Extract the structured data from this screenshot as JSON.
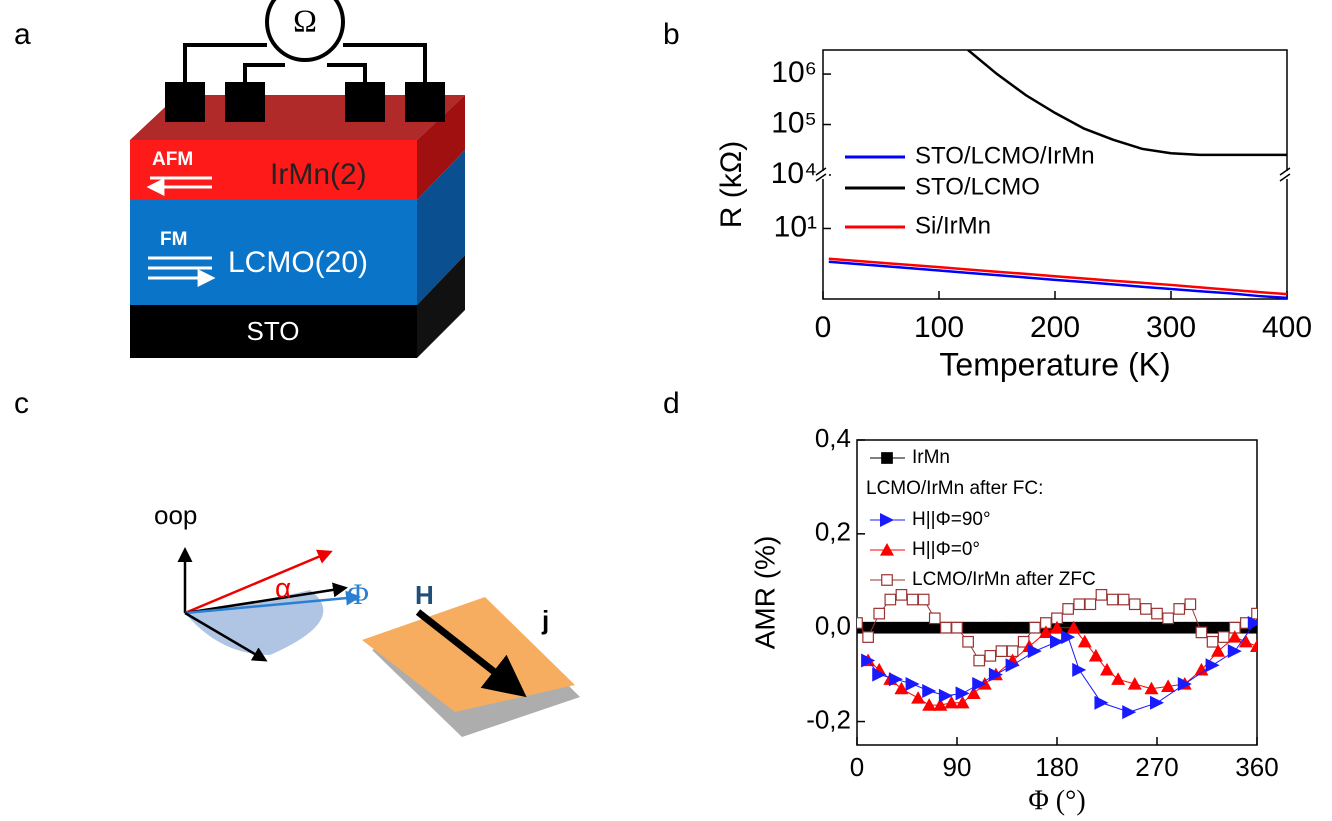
{
  "panel_labels": [
    "a",
    "b",
    "c",
    "d"
  ],
  "diagram_a": {
    "meter": "Ω",
    "afm": "AFM",
    "irmn": "IrMn(2)",
    "fm": "FM",
    "lcmo": "LCMO(20)",
    "sto": "STO"
  },
  "diagram_c": {
    "oop": "oop",
    "alpha": "α",
    "phi": "Φ",
    "h": "H",
    "j": "j"
  },
  "chart_data": [
    {
      "type": "line",
      "y_label": "R (kΩ)",
      "x_label": "Temperature (K)",
      "yscale": "log",
      "xlim": [
        0,
        400
      ],
      "xticks": [
        0,
        100,
        200,
        300,
        400
      ],
      "ylim": [
        0.4,
        3000000
      ],
      "axis_break": [
        115,
        10000
      ],
      "yticks": [
        {
          "value": 10,
          "label": "10¹"
        },
        {
          "value": 10000,
          "label": "10⁴"
        },
        {
          "value": 100000,
          "label": "10⁵"
        },
        {
          "value": 1000000,
          "label": "10⁶"
        }
      ],
      "x": [
        5,
        50,
        100,
        125,
        150,
        175,
        200,
        225,
        250,
        275,
        300,
        325,
        350,
        375,
        400
      ],
      "series": [
        {
          "name": "STO/LCMO/IrMn",
          "color": "#0000ff",
          "values": [
            2.19,
            1.81,
            1.47,
            1.32,
            1.19,
            1.07,
            0.96,
            0.87,
            0.78,
            0.7,
            0.63,
            0.57,
            0.52,
            0.46,
            0.42
          ]
        },
        {
          "name": "STO/LCMO",
          "color": "#000000",
          "values": [
            null,
            null,
            null,
            3000000,
            1000000,
            380000,
            170000,
            83000,
            50000,
            33000,
            27000,
            25000,
            25000,
            25000,
            25000
          ]
        },
        {
          "name": "Si/IrMn",
          "color": "#ff0000",
          "values": [
            2.51,
            2.09,
            1.71,
            1.54,
            1.39,
            1.26,
            1.13,
            1.02,
            0.92,
            0.84,
            0.76,
            0.68,
            0.61,
            0.55,
            0.5
          ]
        }
      ]
    },
    {
      "type": "scatter-line",
      "y_label": "AMR (%)",
      "x_label": "Φ (°)",
      "xlim": [
        0,
        360
      ],
      "xticks": [
        0,
        90,
        180,
        270,
        360
      ],
      "ylim": [
        -0.25,
        0.4
      ],
      "yticks": [
        {
          "value": -0.2,
          "label": "-0,2"
        },
        {
          "value": 0,
          "label": "0,0"
        },
        {
          "value": 0.2,
          "label": "0,2"
        },
        {
          "value": 0.4,
          "label": "0,4"
        }
      ],
      "legend_header": "LCMO/IrMn after FC:",
      "series": [
        {
          "name": "IrMn",
          "color": "#000000",
          "marker": "filled-square",
          "x": [
            0,
            10,
            20,
            30,
            40,
            50,
            60,
            70,
            80,
            90,
            100,
            110,
            120,
            130,
            140,
            150,
            160,
            170,
            180,
            190,
            200,
            210,
            220,
            230,
            240,
            250,
            260,
            270,
            280,
            290,
            300,
            310,
            320,
            330,
            340,
            350,
            360
          ],
          "values": [
            0,
            0,
            0,
            0,
            0,
            0,
            0,
            0,
            0,
            0,
            0,
            0,
            0,
            0,
            0,
            0,
            0,
            0,
            0,
            0,
            0,
            0,
            0,
            0,
            0,
            0,
            0,
            0,
            0,
            0,
            0,
            0,
            0,
            0,
            0,
            0,
            0
          ]
        },
        {
          "name": "H||Φ=90°",
          "color": "#1a1aff",
          "marker": "right-triangle",
          "x": [
            10,
            20,
            35,
            50,
            65,
            80,
            95,
            110,
            125,
            140,
            160,
            180,
            190,
            200,
            220,
            245,
            270,
            295,
            320,
            340,
            358
          ],
          "values": [
            -0.07,
            -0.1,
            -0.11,
            -0.12,
            -0.135,
            -0.145,
            -0.14,
            -0.12,
            -0.1,
            -0.08,
            -0.05,
            -0.03,
            -0.02,
            -0.09,
            -0.16,
            -0.18,
            -0.16,
            -0.12,
            -0.08,
            -0.05,
            0.01
          ]
        },
        {
          "name": "H||Φ=0°",
          "color": "#ff0000",
          "marker": "up-triangle",
          "x": [
            10,
            20,
            30,
            40,
            55,
            65,
            75,
            85,
            95,
            105,
            115,
            125,
            140,
            155,
            170,
            180,
            195,
            205,
            215,
            225,
            235,
            250,
            265,
            280,
            295,
            310,
            325,
            340,
            350,
            360
          ],
          "values": [
            -0.07,
            -0.09,
            -0.11,
            -0.13,
            -0.15,
            -0.165,
            -0.165,
            -0.16,
            -0.16,
            -0.14,
            -0.12,
            -0.1,
            -0.07,
            -0.04,
            -0.01,
            0,
            0,
            -0.03,
            -0.06,
            -0.09,
            -0.11,
            -0.12,
            -0.13,
            -0.125,
            -0.12,
            -0.09,
            -0.05,
            -0.02,
            -0.03,
            -0.04
          ]
        },
        {
          "name": "LCMO/IrMn after ZFC",
          "color": "#993333",
          "marker": "open-square",
          "x": [
            0,
            10,
            20,
            30,
            40,
            50,
            60,
            70,
            80,
            90,
            100,
            110,
            120,
            130,
            140,
            150,
            160,
            170,
            180,
            190,
            200,
            210,
            220,
            230,
            240,
            250,
            260,
            270,
            280,
            290,
            300,
            310,
            320,
            330,
            340,
            350,
            360
          ],
          "values": [
            0.01,
            -0.02,
            0.03,
            0.06,
            0.07,
            0.06,
            0.06,
            0.02,
            0,
            0,
            -0.03,
            -0.07,
            -0.06,
            -0.05,
            -0.05,
            -0.03,
            0,
            0.01,
            0.02,
            0.04,
            0.05,
            0.05,
            0.07,
            0.06,
            0.06,
            0.05,
            0.04,
            0.03,
            0.02,
            0.04,
            0.05,
            -0.01,
            -0.03,
            -0.02,
            0,
            0.01,
            0.03
          ]
        }
      ]
    }
  ]
}
